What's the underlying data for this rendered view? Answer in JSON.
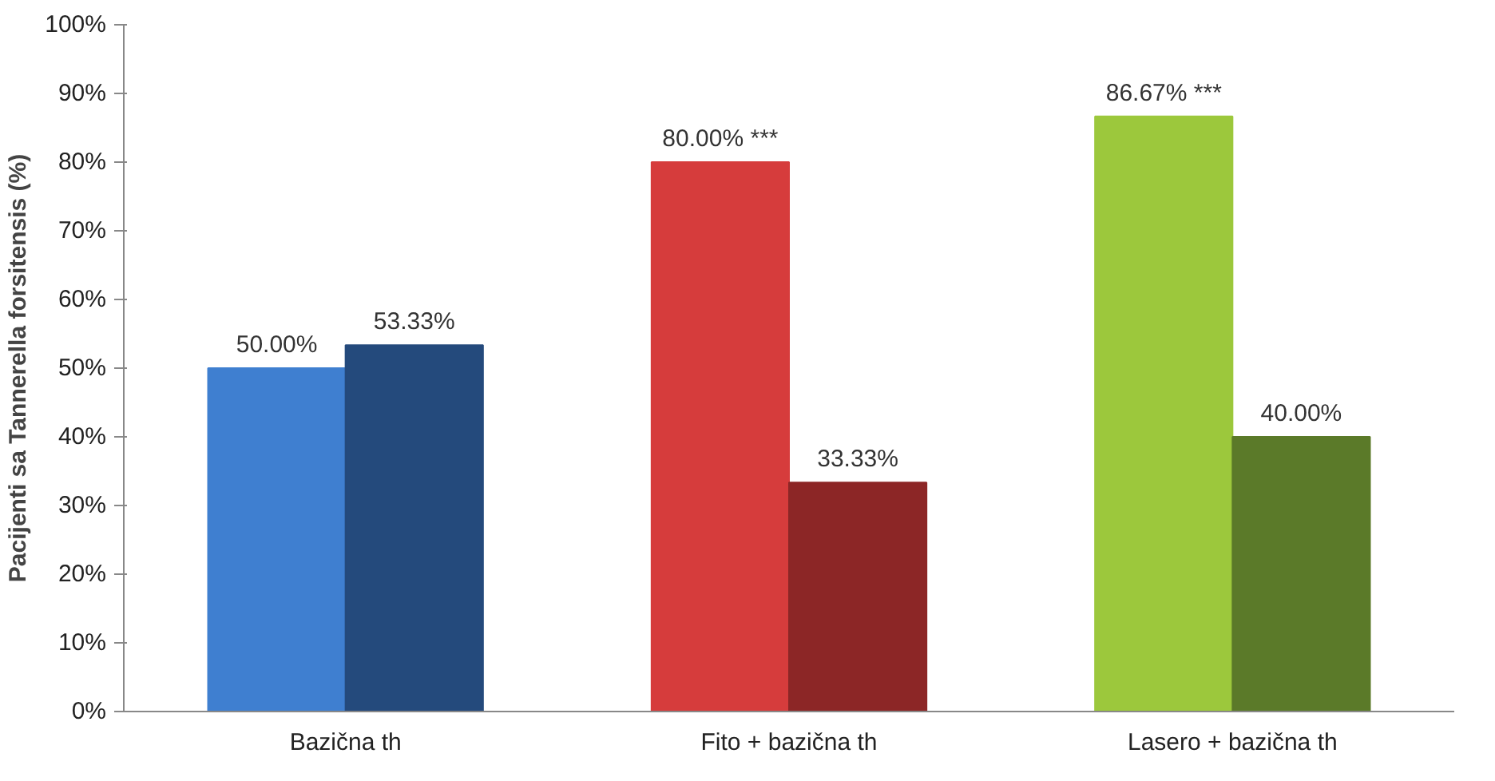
{
  "chart_data": {
    "type": "bar",
    "ylabel": "Pacijenti sa Tannerella forsitensis (%)",
    "categories": [
      "Bazična th",
      "Fito + bazična th",
      "Lasero + bazična th"
    ],
    "series": [
      {
        "colors": [
          "#3f7fd0",
          "#d63c3c",
          "#9cc83c"
        ],
        "values": [
          50.0,
          80.0,
          86.67
        ],
        "value_labels": [
          "50.00%",
          "80.00% ***",
          "86.67% ***"
        ]
      },
      {
        "colors": [
          "#244a7c",
          "#8c2626",
          "#5b7a29"
        ],
        "values": [
          53.33,
          33.33,
          40.0
        ],
        "value_labels": [
          "53.33%",
          "33.33%",
          "40.00%"
        ]
      }
    ],
    "ylim": [
      0,
      100
    ],
    "yticks": [
      {
        "value": 0,
        "label": "0%"
      },
      {
        "value": 10,
        "label": "10%"
      },
      {
        "value": 20,
        "label": "20%"
      },
      {
        "value": 30,
        "label": "30%"
      },
      {
        "value": 40,
        "label": "40%"
      },
      {
        "value": 50,
        "label": "50%"
      },
      {
        "value": 60,
        "label": "60%"
      },
      {
        "value": 70,
        "label": "70%"
      },
      {
        "value": 80,
        "label": "80%"
      },
      {
        "value": 90,
        "label": "90%"
      },
      {
        "value": 100,
        "label": "100%"
      }
    ],
    "grid": false
  }
}
